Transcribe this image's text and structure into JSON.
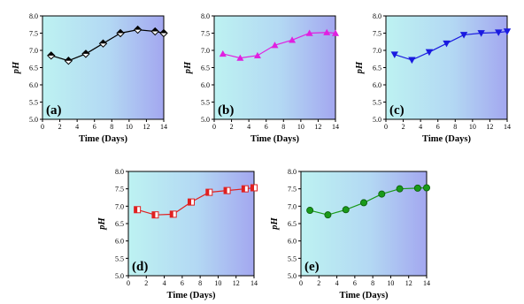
{
  "chart_data": [
    {
      "panel_label": "(a)",
      "type": "line",
      "xlabel": "Time (Days)",
      "ylabel": "pH",
      "xlim": [
        0,
        14
      ],
      "ylim": [
        5.0,
        8.0
      ],
      "xticks": [
        "0",
        "2",
        "4",
        "6",
        "8",
        "10",
        "12",
        "14"
      ],
      "yticks": [
        "5.0",
        "5.5",
        "6.0",
        "6.5",
        "7.0",
        "7.5",
        "8.0"
      ],
      "x": [
        1,
        3,
        5,
        7,
        9,
        11,
        13,
        14
      ],
      "y": [
        6.85,
        6.7,
        6.9,
        7.2,
        7.5,
        7.6,
        7.55,
        7.5
      ],
      "marker": "half-diamond",
      "color": "#000000",
      "background_gradient": [
        "#bdf2f2",
        "#a3a7f0"
      ]
    },
    {
      "panel_label": "(b)",
      "type": "line",
      "xlabel": "Time (Days)",
      "ylabel": "pH",
      "xlim": [
        0,
        14
      ],
      "ylim": [
        5.0,
        8.0
      ],
      "xticks": [
        "0",
        "2",
        "4",
        "6",
        "8",
        "10",
        "12",
        "14"
      ],
      "yticks": [
        "5.0",
        "5.5",
        "6.0",
        "6.5",
        "7.0",
        "7.5",
        "8.0"
      ],
      "x": [
        1,
        3,
        5,
        7,
        9,
        11,
        13,
        14
      ],
      "y": [
        6.9,
        6.78,
        6.85,
        7.15,
        7.3,
        7.5,
        7.52,
        7.5
      ],
      "marker": "triangle-up",
      "color": "#e020e0",
      "background_gradient": [
        "#bdf2f2",
        "#a3a7f0"
      ]
    },
    {
      "panel_label": "(c)",
      "type": "line",
      "xlabel": "Time (Days)",
      "ylabel": "pH",
      "xlim": [
        0,
        14
      ],
      "ylim": [
        5.0,
        8.0
      ],
      "xticks": [
        "0",
        "2",
        "4",
        "6",
        "8",
        "10",
        "12",
        "14"
      ],
      "yticks": [
        "5.0",
        "5.5",
        "6.0",
        "6.5",
        "7.0",
        "7.5",
        "8.0"
      ],
      "x": [
        1,
        3,
        5,
        7,
        9,
        11,
        13,
        14
      ],
      "y": [
        6.88,
        6.72,
        6.95,
        7.2,
        7.45,
        7.5,
        7.52,
        7.55
      ],
      "marker": "triangle-down",
      "color": "#1a1ae0",
      "background_gradient": [
        "#bdf2f2",
        "#a3a7f0"
      ]
    },
    {
      "panel_label": "(d)",
      "type": "line",
      "xlabel": "Time (Days)",
      "ylabel": "pH",
      "xlim": [
        0,
        14
      ],
      "ylim": [
        5.0,
        8.0
      ],
      "xticks": [
        "0",
        "2",
        "4",
        "6",
        "8",
        "10",
        "12",
        "14"
      ],
      "yticks": [
        "5.0",
        "5.5",
        "6.0",
        "6.5",
        "7.0",
        "7.5",
        "8.0"
      ],
      "x": [
        1,
        3,
        5,
        7,
        9,
        11,
        13,
        14
      ],
      "y": [
        6.9,
        6.75,
        6.77,
        7.12,
        7.4,
        7.45,
        7.5,
        7.53
      ],
      "marker": "half-square",
      "color": "#e02020",
      "background_gradient": [
        "#bdf2f2",
        "#a3a7f0"
      ]
    },
    {
      "panel_label": "(e)",
      "type": "line",
      "xlabel": "Time (Days)",
      "ylabel": "pH",
      "xlim": [
        0,
        14
      ],
      "ylim": [
        5.0,
        8.0
      ],
      "xticks": [
        "0",
        "2",
        "4",
        "6",
        "8",
        "10",
        "12",
        "14"
      ],
      "yticks": [
        "5.0",
        "5.5",
        "6.0",
        "6.5",
        "7.0",
        "7.5",
        "8.0"
      ],
      "x": [
        1,
        3,
        5,
        7,
        9,
        11,
        13,
        14
      ],
      "y": [
        6.88,
        6.75,
        6.9,
        7.1,
        7.35,
        7.5,
        7.52,
        7.53
      ],
      "marker": "circle",
      "color": "#1a9a1a",
      "background_gradient": [
        "#bdf2f2",
        "#a3a7f0"
      ]
    }
  ]
}
